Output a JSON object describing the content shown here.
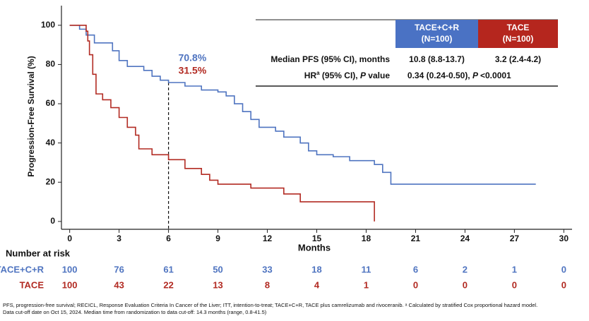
{
  "chart_data": {
    "type": "step",
    "ylabel": "Progression-Free Survival (%)",
    "xlabel": "Months",
    "xlim": [
      -0.5,
      30.5
    ],
    "xticks": [
      0,
      3,
      6,
      9,
      12,
      15,
      18,
      21,
      24,
      27,
      30
    ],
    "ylim": [
      -4,
      110
    ],
    "yticks": [
      0,
      20,
      40,
      60,
      80,
      100
    ],
    "reference_x": 6,
    "annotations": [
      {
        "text": "70.8%",
        "color": "#4f74c0"
      },
      {
        "text": "31.5%",
        "color": "#b22a22"
      }
    ],
    "series": [
      {
        "name": "TACE+C+R",
        "color": "#4f74c0",
        "x": [
          0,
          0.6,
          1.0,
          1.5,
          2.6,
          3.0,
          3.5,
          4.5,
          5.0,
          5.5,
          6.0,
          7.0,
          8.0,
          9.0,
          9.5,
          10.0,
          10.5,
          11.0,
          11.5,
          12.5,
          13.0,
          14.0,
          14.5,
          15.0,
          16.0,
          17.0,
          18.5,
          19.0,
          19.5,
          28.3
        ],
        "values": [
          100,
          98,
          95,
          91,
          87,
          82,
          79,
          77,
          74,
          72,
          70.8,
          69,
          67,
          66,
          64,
          60,
          56,
          52,
          48,
          46,
          43,
          40,
          36,
          34,
          33,
          31,
          29,
          25,
          19,
          19
        ]
      },
      {
        "name": "TACE",
        "color": "#b22a22",
        "x": [
          0,
          1.0,
          1.1,
          1.2,
          1.4,
          1.6,
          2.0,
          2.5,
          3.0,
          3.5,
          4.0,
          4.2,
          5.0,
          6.0,
          7.0,
          8.0,
          8.5,
          9.0,
          11.0,
          13.0,
          14.0,
          18.5,
          18.5
        ],
        "values": [
          100,
          97,
          92,
          85,
          75,
          65,
          62,
          58,
          53,
          48,
          44,
          37,
          34,
          31.5,
          27,
          24,
          21,
          19,
          17,
          14,
          10,
          10,
          0
        ]
      }
    ],
    "summary_table": {
      "headers": [
        {
          "line1": "TACE+C+R",
          "line2": "(N=100)",
          "color": "#4a72c4"
        },
        {
          "line1": "TACE",
          "line2": "(N=100)",
          "color": "#b5261e"
        }
      ],
      "rows": [
        {
          "label": [
            {
              "text": "Median PFS (95% CI), months"
            }
          ],
          "cells": [
            [
              {
                "text": "10.8 (8.8-13.7)"
              }
            ],
            [
              {
                "text": "3.2 (2.4-4.2)"
              }
            ]
          ]
        },
        {
          "label": [
            {
              "text": "HR"
            },
            {
              "text": "a",
              "sup": true
            },
            {
              "text": " (95% CI), "
            },
            {
              "text": "P",
              "italic": true
            },
            {
              "text": " value"
            }
          ],
          "cells": [
            [
              {
                "text": "0.34 (0.24-0.50), "
              },
              {
                "text": "P",
                "italic": true
              }
            ],
            [
              {
                "text": "<0.0001"
              }
            ]
          ]
        }
      ]
    },
    "risk_table": {
      "title": "Number at risk",
      "rows": [
        {
          "name": "TACE+C+R",
          "color": "#4f74c0",
          "values": [
            "100",
            "76",
            "61",
            "50",
            "33",
            "18",
            "11",
            "6",
            "2",
            "1",
            "0"
          ]
        },
        {
          "name": "TACE",
          "color": "#b22a22",
          "values": [
            "100",
            "43",
            "22",
            "13",
            "8",
            "4",
            "1",
            "0",
            "0",
            "0",
            "0"
          ]
        }
      ]
    },
    "footnotes": [
      "PFS, progression-free survival; RECICL, Response Evaluation Criteria In Cancer of the Liver; ITT, intention-to-treat; TACE+C+R, TACE plus camrelizumab and rivoceranib. ᵃ Calculated by stratified Cox proportional hazard model.",
      "Data cut-off date on Oct 15, 2024. Median time from  randomization to data cut-off: 14.3 months (range, 0.8-41.5)"
    ]
  }
}
